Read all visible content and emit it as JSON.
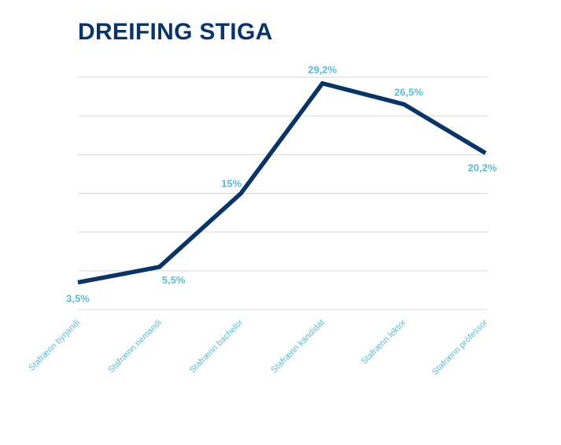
{
  "chart_data": {
    "type": "line",
    "title": "DREIFING STIGA",
    "categories": [
      "Stafrænn byrjandi",
      "Stafrænn nemandi",
      "Stafrænn bachelor",
      "Stafrænn kandídat",
      "Stafrænn lektor",
      "Stafrænn prófessor"
    ],
    "values": [
      3.5,
      5.5,
      15,
      29.2,
      26.5,
      20.2
    ],
    "data_labels": [
      "3,5%",
      "5,5%",
      "15%",
      "29,2%",
      "26,5%",
      "20,2%"
    ],
    "ylim": [
      0,
      30
    ],
    "grid": true,
    "legend": "none",
    "colors": {
      "line": "#0b3466",
      "labels": "#5bbcd6",
      "grid": "#d8d8d8",
      "title": "#0b3466"
    }
  }
}
